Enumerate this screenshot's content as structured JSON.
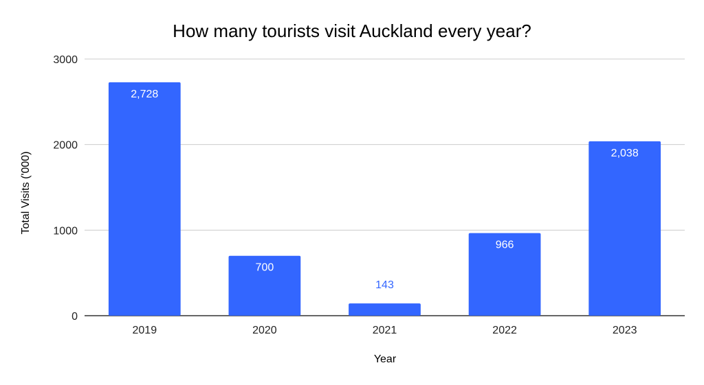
{
  "chart_data": {
    "type": "bar",
    "title": "How many tourists visit Auckland every year?",
    "xlabel": "Year",
    "ylabel": "Total Visits ('000)",
    "categories": [
      "2019",
      "2020",
      "2021",
      "2022",
      "2023"
    ],
    "values": [
      2728,
      700,
      143,
      966,
      2038
    ],
    "data_labels": [
      "2,728",
      "700",
      "143",
      "966",
      "2,038"
    ],
    "ylim": [
      0,
      3000
    ],
    "yticks": [
      "0",
      "1000",
      "2000",
      "3000"
    ],
    "ytick_values": [
      0,
      1000,
      2000,
      3000
    ],
    "grid": true,
    "legend": "none",
    "colors": {
      "bar": "#3366ff",
      "label_inside": "#ffffff",
      "label_outside": "#3366ff",
      "gridline": "#cccccc",
      "baseline": "#333333"
    }
  }
}
